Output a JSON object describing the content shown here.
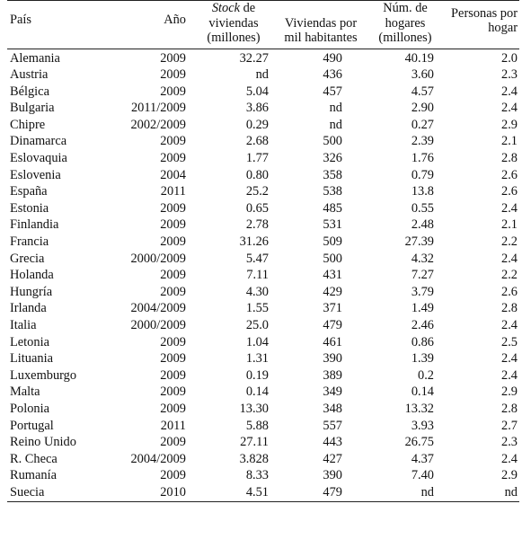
{
  "headers": {
    "pais": "País",
    "anio": "Año",
    "stock_italic": "Stock",
    "stock_rest": " de viviendas (millones)",
    "viviendas": "Viviendas por mil habitantes",
    "hogares": "Núm. de hogares (millones)",
    "personas": "Personas por hogar"
  },
  "rows": [
    {
      "pais": "Alemania",
      "anio": "2009",
      "stock": "32.27",
      "viv": "490",
      "hog": "40.19",
      "pers": "2.0"
    },
    {
      "pais": "Austria",
      "anio": "2009",
      "stock": "nd",
      "viv": "436",
      "hog": "3.60",
      "pers": "2.3"
    },
    {
      "pais": "Bélgica",
      "anio": "2009",
      "stock": "5.04",
      "viv": "457",
      "hog": "4.57",
      "pers": "2.4"
    },
    {
      "pais": "Bulgaria",
      "anio": "2011/2009",
      "stock": "3.86",
      "viv": "nd",
      "hog": "2.90",
      "pers": "2.4"
    },
    {
      "pais": "Chipre",
      "anio": "2002/2009",
      "stock": "0.29",
      "viv": "nd",
      "hog": "0.27",
      "pers": "2.9"
    },
    {
      "pais": "Dinamarca",
      "anio": "2009",
      "stock": "2.68",
      "viv": "500",
      "hog": "2.39",
      "pers": "2.1"
    },
    {
      "pais": "Eslovaquia",
      "anio": "2009",
      "stock": "1.77",
      "viv": "326",
      "hog": "1.76",
      "pers": "2.8"
    },
    {
      "pais": "Eslovenia",
      "anio": "2004",
      "stock": "0.80",
      "viv": "358",
      "hog": "0.79",
      "pers": "2.6"
    },
    {
      "pais": "España",
      "anio": "2011",
      "stock": "25.2",
      "viv": "538",
      "hog": "13.8",
      "pers": "2.6"
    },
    {
      "pais": "Estonia",
      "anio": "2009",
      "stock": "0.65",
      "viv": "485",
      "hog": "0.55",
      "pers": "2.4"
    },
    {
      "pais": "Finlandia",
      "anio": "2009",
      "stock": "2.78",
      "viv": "531",
      "hog": "2.48",
      "pers": "2.1"
    },
    {
      "pais": "Francia",
      "anio": "2009",
      "stock": "31.26",
      "viv": "509",
      "hog": "27.39",
      "pers": "2.2"
    },
    {
      "pais": "Grecia",
      "anio": "2000/2009",
      "stock": "5.47",
      "viv": "500",
      "hog": "4.32",
      "pers": "2.4"
    },
    {
      "pais": "Holanda",
      "anio": "2009",
      "stock": "7.11",
      "viv": "431",
      "hog": "7.27",
      "pers": "2.2"
    },
    {
      "pais": "Hungría",
      "anio": "2009",
      "stock": "4.30",
      "viv": "429",
      "hog": "3.79",
      "pers": "2.6"
    },
    {
      "pais": "Irlanda",
      "anio": "2004/2009",
      "stock": "1.55",
      "viv": "371",
      "hog": "1.49",
      "pers": "2.8"
    },
    {
      "pais": "Italia",
      "anio": "2000/2009",
      "stock": "25.0",
      "viv": "479",
      "hog": "2.46",
      "pers": "2.4"
    },
    {
      "pais": "Letonia",
      "anio": "2009",
      "stock": "1.04",
      "viv": "461",
      "hog": "0.86",
      "pers": "2.5"
    },
    {
      "pais": "Lituania",
      "anio": "2009",
      "stock": "1.31",
      "viv": "390",
      "hog": "1.39",
      "pers": "2.4"
    },
    {
      "pais": "Luxemburgo",
      "anio": "2009",
      "stock": "0.19",
      "viv": "389",
      "hog": "0.2",
      "pers": "2.4"
    },
    {
      "pais": "Malta",
      "anio": "2009",
      "stock": "0.14",
      "viv": "349",
      "hog": "0.14",
      "pers": "2.9"
    },
    {
      "pais": "Polonia",
      "anio": "2009",
      "stock": "13.30",
      "viv": "348",
      "hog": "13.32",
      "pers": "2.8"
    },
    {
      "pais": "Portugal",
      "anio": "2011",
      "stock": "5.88",
      "viv": "557",
      "hog": "3.93",
      "pers": "2.7"
    },
    {
      "pais": "Reino Unido",
      "anio": "2009",
      "stock": "27.11",
      "viv": "443",
      "hog": "26.75",
      "pers": "2.3"
    },
    {
      "pais": "R. Checa",
      "anio": "2004/2009",
      "stock": "3.828",
      "viv": "427",
      "hog": "4.37",
      "pers": "2.4"
    },
    {
      "pais": "Rumanía",
      "anio": "2009",
      "stock": "8.33",
      "viv": "390",
      "hog": "7.40",
      "pers": "2.9"
    },
    {
      "pais": "Suecia",
      "anio": "2010",
      "stock": "4.51",
      "viv": "479",
      "hog": "nd",
      "pers": "nd"
    }
  ]
}
